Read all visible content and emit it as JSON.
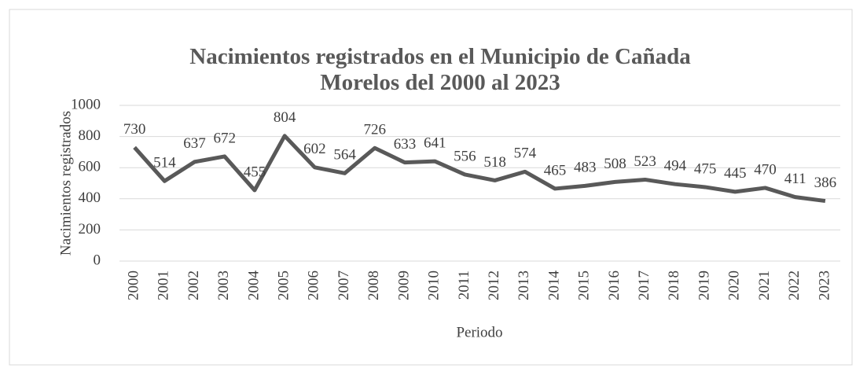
{
  "chart_data": {
    "type": "line",
    "title": "Nacimientos registrados en el Municipio de Cañada Morelos del 2000 al 2023",
    "xlabel": "Periodo",
    "ylabel": "Nacimientos registrados",
    "categories": [
      "2000",
      "2001",
      "2002",
      "2003",
      "2004",
      "2005",
      "2006",
      "2007",
      "2008",
      "2009",
      "2010",
      "2011",
      "2012",
      "2013",
      "2014",
      "2015",
      "2016",
      "2017",
      "2018",
      "2019",
      "2020",
      "2021",
      "2022",
      "2023"
    ],
    "values": [
      730,
      514,
      637,
      672,
      455,
      804,
      602,
      564,
      726,
      633,
      641,
      556,
      518,
      574,
      465,
      483,
      508,
      523,
      494,
      475,
      445,
      470,
      411,
      386
    ],
    "color": "#595959",
    "ylim": [
      0,
      1000
    ],
    "yticks": [
      0,
      200,
      400,
      600,
      800,
      1000
    ],
    "grid": true
  }
}
